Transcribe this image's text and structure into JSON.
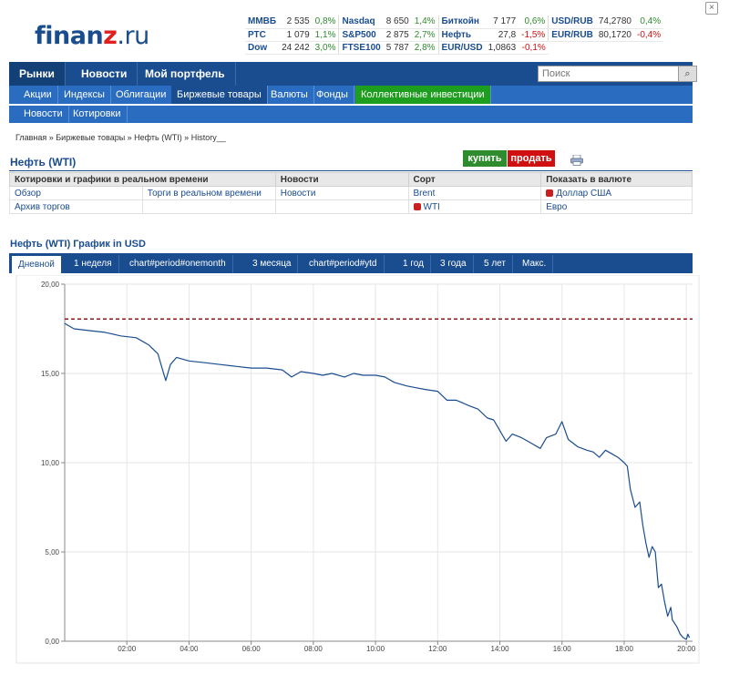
{
  "header": {
    "logo_main": "finanz",
    "logo_accent": "z",
    "logo_domain": ".ru",
    "close_label": "×"
  },
  "ticker": [
    [
      {
        "name": "ММВБ",
        "value": "2 535",
        "change": "0,8%",
        "dir": "up"
      },
      {
        "name": "Nasdaq",
        "value": "8 650",
        "change": "1,4%",
        "dir": "up"
      },
      {
        "name": "Биткойн",
        "value": "7 177",
        "change": "0,6%",
        "dir": "up"
      },
      {
        "name": "USD/RUB",
        "value": "74,2780",
        "change": "0,4%",
        "dir": "up"
      }
    ],
    [
      {
        "name": "РТС",
        "value": "1 079",
        "change": "1,1%",
        "dir": "up"
      },
      {
        "name": "S&P500",
        "value": "2 875",
        "change": "2,7%",
        "dir": "up"
      },
      {
        "name": "Нефть",
        "value": "27,8",
        "change": "-1,5%",
        "dir": "down"
      },
      {
        "name": "EUR/RUB",
        "value": "80,1720",
        "change": "-0,4%",
        "dir": "down"
      }
    ],
    [
      {
        "name": "Dow",
        "value": "24 242",
        "change": "3,0%",
        "dir": "up"
      },
      {
        "name": "FTSE100",
        "value": "5 787",
        "change": "2,8%",
        "dir": "up"
      },
      {
        "name": "EUR/USD",
        "value": "1,0863",
        "change": "-0,1%",
        "dir": "down"
      }
    ]
  ],
  "mainnav": {
    "items": [
      "Рынки",
      "Новости",
      "Мой портфель"
    ],
    "search_placeholder": "Поиск",
    "search_icon": "magnifier-icon"
  },
  "subnav": {
    "items": [
      "Акции",
      "Индексы",
      "Облигации",
      "Биржевые товары",
      "Валюты",
      "Фонды",
      "Коллективные инвестиции"
    ]
  },
  "subnav2": {
    "items": [
      "Новости",
      "Котировки"
    ]
  },
  "breadcrumb": "Главная » Биржевые товары » Нефть (WTI) » History__",
  "page": {
    "title": "Нефть (WTI)",
    "buy_label": "купить",
    "sell_label": "продать"
  },
  "info_table": {
    "headers": [
      "Котировки и графики в реальном времени",
      "",
      "Новости",
      "Сорт",
      "Показать в валюте"
    ],
    "rows": [
      [
        "Обзор",
        "Торги в реальном времени",
        "Новости",
        "Brent",
        "Доллар США"
      ],
      [
        "Архив торгов",
        "",
        "",
        "WTI",
        "Евро"
      ]
    ]
  },
  "chart_section": {
    "title": "Нефть (WTI) График in USD",
    "tabs": [
      "Дневной",
      "1 неделя",
      "chart#period#onemonth",
      "3 месяца",
      "chart#period#ytd",
      "1 год",
      "3 года",
      "5 лет",
      "Макс."
    ]
  },
  "chart_data": {
    "type": "line",
    "ylim": [
      0,
      20
    ],
    "xlim": [
      0,
      20.2
    ],
    "y_ticks": [
      "0,00",
      "5,00",
      "10,00",
      "15,00",
      "20,00"
    ],
    "x_ticks": [
      "02:00",
      "04:00",
      "06:00",
      "08:00",
      "10:00",
      "12:00",
      "14:00",
      "16:00",
      "18:00",
      "20:00"
    ],
    "reference_line": 18.05,
    "colors": {
      "line": "#1a4d8f",
      "reference": "#8b1a1a",
      "grid": "#dddddd"
    },
    "x": [
      0.0,
      0.3,
      0.8,
      1.3,
      1.8,
      2.3,
      2.7,
      3.0,
      3.15,
      3.25,
      3.4,
      3.6,
      4.0,
      4.5,
      5.0,
      5.5,
      6.0,
      6.5,
      7.0,
      7.3,
      7.6,
      8.0,
      8.3,
      8.6,
      9.0,
      9.3,
      9.6,
      10.0,
      10.3,
      10.6,
      11.0,
      11.3,
      11.6,
      12.0,
      12.3,
      12.6,
      13.0,
      13.3,
      13.6,
      13.8,
      14.0,
      14.2,
      14.4,
      14.7,
      15.0,
      15.3,
      15.5,
      15.8,
      16.0,
      16.2,
      16.5,
      16.8,
      17.0,
      17.2,
      17.4,
      17.6,
      17.8,
      18.0,
      18.1,
      18.2,
      18.35,
      18.5,
      18.6,
      18.7,
      18.8,
      18.9,
      19.0,
      19.1,
      19.2,
      19.3,
      19.4,
      19.5,
      19.55,
      19.7,
      19.8,
      19.9,
      20.0,
      20.05,
      20.1
    ],
    "y": [
      17.8,
      17.5,
      17.4,
      17.3,
      17.1,
      17.0,
      16.6,
      16.1,
      15.2,
      14.6,
      15.5,
      15.9,
      15.7,
      15.6,
      15.5,
      15.4,
      15.3,
      15.3,
      15.2,
      14.8,
      15.1,
      15.0,
      14.9,
      15.0,
      14.8,
      15.0,
      14.9,
      14.9,
      14.8,
      14.5,
      14.3,
      14.2,
      14.1,
      14.0,
      13.5,
      13.5,
      13.2,
      13.0,
      12.5,
      12.4,
      11.8,
      11.2,
      11.6,
      11.4,
      11.1,
      10.8,
      11.4,
      11.6,
      12.3,
      11.3,
      10.9,
      10.7,
      10.6,
      10.3,
      10.7,
      10.5,
      10.3,
      10.0,
      9.8,
      8.5,
      7.5,
      7.8,
      6.5,
      5.5,
      4.7,
      5.3,
      5.0,
      3.0,
      3.2,
      2.2,
      1.4,
      1.9,
      1.2,
      0.8,
      0.4,
      0.2,
      0.1,
      0.4,
      0.2
    ]
  }
}
